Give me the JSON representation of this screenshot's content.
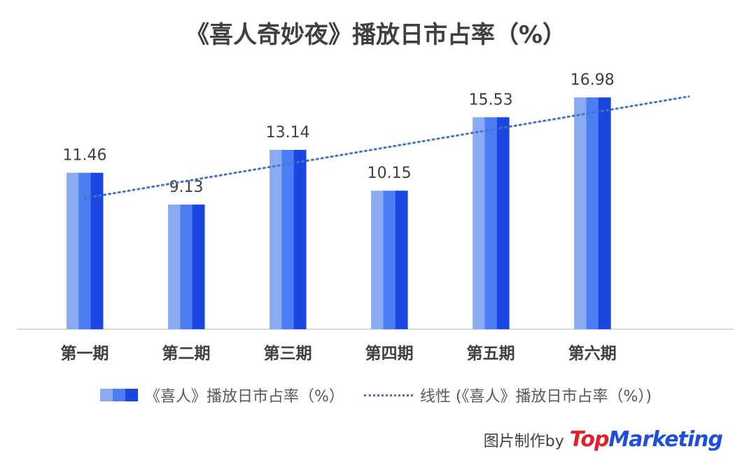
{
  "chart_data": {
    "type": "bar",
    "title": "《喜人奇妙夜》播放日市占率（%）",
    "categories": [
      "第一期",
      "第二期",
      "第三期",
      "第四期",
      "第五期",
      "第六期"
    ],
    "series": [
      {
        "name": "《喜人》播放日市占率（%）",
        "values": [
          11.46,
          9.13,
          13.14,
          10.15,
          15.53,
          16.98
        ]
      }
    ],
    "trendline": {
      "name": "线性 (《喜人》播放日市占率（%）)",
      "type": "linear"
    },
    "ylim": [
      0,
      19.5
    ],
    "grid": false,
    "legend_position": "bottom",
    "colors": {
      "bar_light": "#8aabf2",
      "bar_mid": "#4d7df5",
      "bar_dark": "#1a47e0",
      "trend": "#4472c4",
      "axis": "#d9d9d9"
    }
  },
  "legend": {
    "bar_label": "《喜人》播放日市占率（%）",
    "trend_label": "线性 (《喜人》播放日市占率（%）)"
  },
  "credit": {
    "text": "图片制作by",
    "logo_top": "Top",
    "logo_rest": "Marketing"
  }
}
